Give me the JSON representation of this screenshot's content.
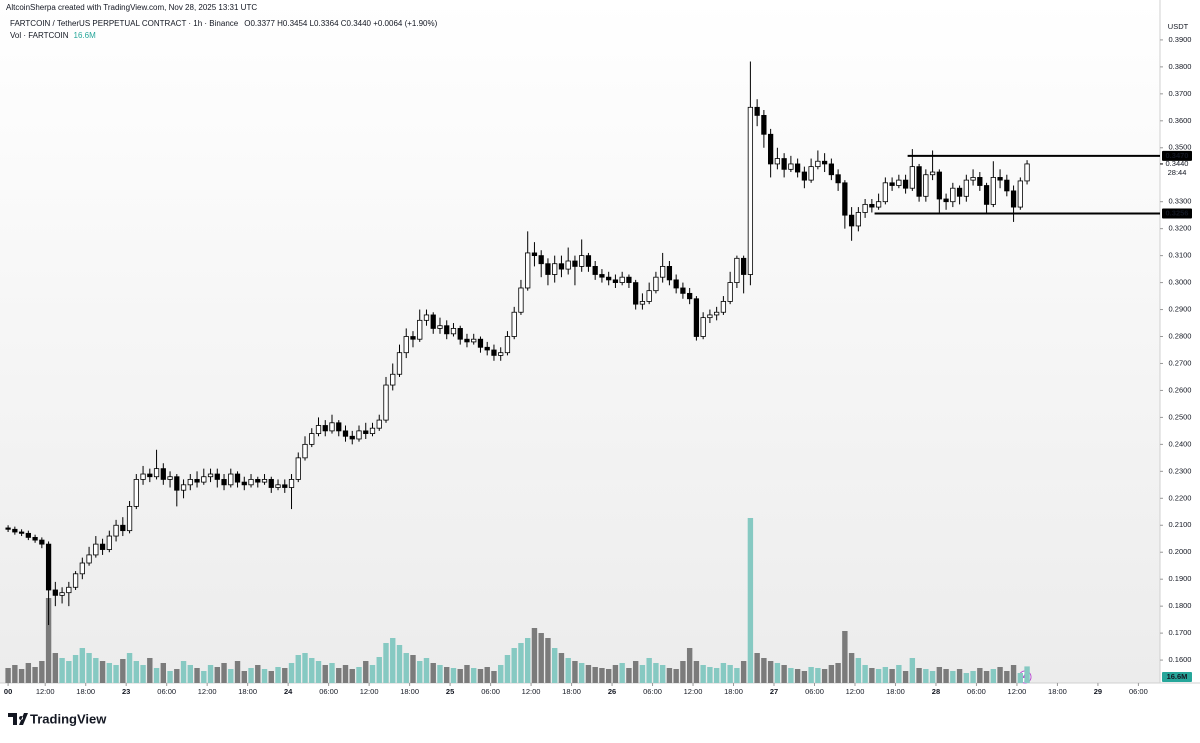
{
  "header": {
    "credit": "AltcoinSherpa created with TradingView.com, Nov 28, 2025 13:31 UTC",
    "symbol": "FARTCOIN / TetherUS PERPETUAL CONTRACT · 1h · Binance",
    "ohlc": "O0.3377 H0.3454 L0.3364 C0.3440 +0.0064 (+1.90%)",
    "vol_label": "Vol · FARTCOIN",
    "vol_value": "16.6M"
  },
  "chart_data": {
    "type": "candlestick",
    "currency": "USDT",
    "open": [
      0.209,
      0.2085,
      0.2075,
      0.207,
      0.2055,
      0.2045,
      0.203,
      0.186,
      0.184,
      0.185,
      0.187,
      0.192,
      0.196,
      0.199,
      0.203,
      0.201,
      0.206,
      0.21,
      0.208,
      0.217,
      0.227,
      0.229,
      0.228,
      0.231,
      0.227,
      0.228,
      0.223,
      0.225,
      0.227,
      0.226,
      0.228,
      0.229,
      0.227,
      0.225,
      0.229,
      0.226,
      0.225,
      0.227,
      0.226,
      0.227,
      0.224,
      0.225,
      0.224,
      0.227,
      0.235,
      0.24,
      0.244,
      0.247,
      0.245,
      0.248,
      0.245,
      0.243,
      0.242,
      0.245,
      0.244,
      0.246,
      0.249,
      0.262,
      0.266,
      0.274,
      0.28,
      0.279,
      0.286,
      0.288,
      0.283,
      0.284,
      0.281,
      0.283,
      0.279,
      0.278,
      0.279,
      0.276,
      0.275,
      0.273,
      0.274,
      0.28,
      0.289,
      0.298,
      0.311,
      0.31,
      0.307,
      0.303,
      0.307,
      0.305,
      0.308,
      0.306,
      0.31,
      0.306,
      0.303,
      0.302,
      0.301,
      0.3,
      0.302,
      0.3,
      0.292,
      0.293,
      0.297,
      0.302,
      0.306,
      0.301,
      0.298,
      0.296,
      0.294,
      0.28,
      0.287,
      0.288,
      0.289,
      0.293,
      0.3,
      0.309,
      0.303,
      0.365,
      0.362,
      0.355,
      0.344,
      0.346,
      0.342,
      0.344,
      0.341,
      0.338,
      0.343,
      0.345,
      0.344,
      0.34,
      0.337,
      0.325,
      0.321,
      0.326,
      0.329,
      0.328,
      0.33,
      0.337,
      0.336,
      0.338,
      0.335,
      0.343,
      0.332,
      0.34,
      0.341,
      0.331,
      0.33,
      0.335,
      0.332,
      0.338,
      0.339,
      0.336,
      0.329,
      0.339,
      0.338,
      0.334,
      0.328,
      0.3377
    ],
    "high": [
      0.21,
      0.2095,
      0.2085,
      0.208,
      0.2065,
      0.2055,
      0.204,
      0.189,
      0.187,
      0.189,
      0.193,
      0.198,
      0.202,
      0.206,
      0.205,
      0.208,
      0.212,
      0.213,
      0.219,
      0.229,
      0.232,
      0.231,
      0.238,
      0.233,
      0.23,
      0.229,
      0.227,
      0.229,
      0.23,
      0.231,
      0.231,
      0.231,
      0.229,
      0.231,
      0.23,
      0.228,
      0.229,
      0.228,
      0.229,
      0.228,
      0.227,
      0.227,
      0.229,
      0.237,
      0.243,
      0.246,
      0.25,
      0.249,
      0.251,
      0.249,
      0.247,
      0.245,
      0.247,
      0.248,
      0.248,
      0.251,
      0.265,
      0.27,
      0.277,
      0.283,
      0.282,
      0.29,
      0.29,
      0.289,
      0.287,
      0.286,
      0.285,
      0.284,
      0.281,
      0.281,
      0.28,
      0.278,
      0.277,
      0.276,
      0.282,
      0.291,
      0.301,
      0.319,
      0.315,
      0.312,
      0.309,
      0.31,
      0.31,
      0.313,
      0.31,
      0.316,
      0.311,
      0.308,
      0.305,
      0.304,
      0.303,
      0.304,
      0.303,
      0.301,
      0.296,
      0.3,
      0.304,
      0.311,
      0.308,
      0.303,
      0.3,
      0.298,
      0.295,
      0.289,
      0.29,
      0.291,
      0.295,
      0.304,
      0.31,
      0.31,
      0.382,
      0.368,
      0.364,
      0.357,
      0.35,
      0.348,
      0.347,
      0.346,
      0.343,
      0.346,
      0.349,
      0.348,
      0.346,
      0.342,
      0.338,
      0.328,
      0.328,
      0.331,
      0.331,
      0.333,
      0.339,
      0.339,
      0.34,
      0.34,
      0.3495,
      0.344,
      0.342,
      0.349,
      0.342,
      0.333,
      0.337,
      0.336,
      0.34,
      0.342,
      0.341,
      0.337,
      0.345,
      0.342,
      0.34,
      0.336,
      0.339,
      0.3454
    ],
    "low": [
      0.2075,
      0.2065,
      0.206,
      0.2045,
      0.2035,
      0.2015,
      0.173,
      0.18,
      0.181,
      0.18,
      0.186,
      0.19,
      0.195,
      0.198,
      0.199,
      0.2,
      0.204,
      0.206,
      0.207,
      0.216,
      0.225,
      0.226,
      0.227,
      0.225,
      0.224,
      0.217,
      0.22,
      0.223,
      0.224,
      0.225,
      0.226,
      0.224,
      0.223,
      0.224,
      0.224,
      0.223,
      0.224,
      0.224,
      0.225,
      0.222,
      0.223,
      0.222,
      0.216,
      0.226,
      0.234,
      0.239,
      0.243,
      0.243,
      0.244,
      0.243,
      0.241,
      0.24,
      0.241,
      0.242,
      0.243,
      0.245,
      0.248,
      0.26,
      0.265,
      0.272,
      0.276,
      0.278,
      0.284,
      0.281,
      0.281,
      0.279,
      0.28,
      0.277,
      0.276,
      0.277,
      0.274,
      0.273,
      0.271,
      0.271,
      0.273,
      0.279,
      0.288,
      0.297,
      0.306,
      0.302,
      0.299,
      0.3,
      0.302,
      0.303,
      0.299,
      0.304,
      0.304,
      0.301,
      0.3,
      0.299,
      0.298,
      0.299,
      0.298,
      0.29,
      0.29,
      0.292,
      0.296,
      0.3,
      0.299,
      0.296,
      0.294,
      0.292,
      0.2785,
      0.279,
      0.285,
      0.286,
      0.288,
      0.292,
      0.298,
      0.296,
      0.299,
      0.358,
      0.35,
      0.339,
      0.342,
      0.339,
      0.341,
      0.339,
      0.335,
      0.337,
      0.342,
      0.341,
      0.338,
      0.334,
      0.32,
      0.3155,
      0.319,
      0.324,
      0.326,
      0.327,
      0.329,
      0.334,
      0.335,
      0.333,
      0.334,
      0.33,
      0.33,
      0.338,
      0.326,
      0.327,
      0.328,
      0.329,
      0.33,
      0.336,
      0.334,
      0.326,
      0.328,
      0.335,
      0.332,
      0.3225,
      0.327,
      0.3364
    ],
    "close": [
      0.2085,
      0.2075,
      0.207,
      0.2055,
      0.2045,
      0.203,
      0.186,
      0.184,
      0.185,
      0.187,
      0.192,
      0.196,
      0.199,
      0.203,
      0.201,
      0.206,
      0.21,
      0.208,
      0.217,
      0.227,
      0.229,
      0.228,
      0.231,
      0.227,
      0.228,
      0.223,
      0.225,
      0.227,
      0.226,
      0.228,
      0.229,
      0.227,
      0.225,
      0.229,
      0.226,
      0.225,
      0.227,
      0.226,
      0.227,
      0.224,
      0.225,
      0.224,
      0.227,
      0.235,
      0.24,
      0.244,
      0.247,
      0.245,
      0.248,
      0.245,
      0.243,
      0.242,
      0.245,
      0.244,
      0.246,
      0.249,
      0.262,
      0.266,
      0.274,
      0.28,
      0.279,
      0.286,
      0.288,
      0.283,
      0.284,
      0.281,
      0.283,
      0.279,
      0.278,
      0.279,
      0.276,
      0.275,
      0.273,
      0.274,
      0.28,
      0.289,
      0.298,
      0.311,
      0.31,
      0.307,
      0.303,
      0.307,
      0.305,
      0.308,
      0.306,
      0.31,
      0.306,
      0.303,
      0.302,
      0.301,
      0.3,
      0.302,
      0.3,
      0.292,
      0.293,
      0.297,
      0.302,
      0.306,
      0.301,
      0.298,
      0.296,
      0.294,
      0.28,
      0.287,
      0.288,
      0.289,
      0.293,
      0.3,
      0.309,
      0.303,
      0.365,
      0.362,
      0.355,
      0.344,
      0.346,
      0.342,
      0.344,
      0.341,
      0.338,
      0.343,
      0.345,
      0.344,
      0.34,
      0.337,
      0.325,
      0.321,
      0.326,
      0.329,
      0.328,
      0.33,
      0.337,
      0.336,
      0.338,
      0.335,
      0.343,
      0.332,
      0.34,
      0.341,
      0.331,
      0.33,
      0.335,
      0.332,
      0.338,
      0.339,
      0.336,
      0.329,
      0.339,
      0.338,
      0.334,
      0.328,
      0.3377,
      0.344
    ],
    "volume": [
      15,
      18,
      14,
      20,
      16,
      22,
      85,
      30,
      25,
      22,
      28,
      35,
      30,
      25,
      22,
      20,
      18,
      24,
      30,
      22,
      18,
      25,
      15,
      20,
      12,
      14,
      22,
      18,
      15,
      12,
      18,
      16,
      20,
      14,
      22,
      12,
      15,
      18,
      14,
      12,
      16,
      15,
      20,
      28,
      30,
      25,
      22,
      18,
      20,
      15,
      18,
      14,
      16,
      22,
      18,
      26,
      40,
      45,
      38,
      30,
      28,
      22,
      25,
      20,
      18,
      16,
      15,
      14,
      18,
      15,
      14,
      16,
      12,
      18,
      28,
      35,
      40,
      45,
      55,
      50,
      45,
      35,
      30,
      25,
      22,
      20,
      18,
      16,
      15,
      14,
      18,
      20,
      15,
      22,
      18,
      25,
      20,
      18,
      15,
      14,
      22,
      35,
      22,
      18,
      16,
      15,
      20,
      18,
      15,
      22,
      165,
      30,
      25,
      22,
      20,
      18,
      15,
      14,
      12,
      16,
      15,
      14,
      18,
      20,
      52,
      30,
      25,
      18,
      15,
      14,
      16,
      14,
      18,
      12,
      25,
      15,
      14,
      12,
      16,
      14,
      12,
      14,
      10,
      12,
      15,
      12,
      14,
      16,
      12,
      18,
      10,
      16.6
    ],
    "up_color": "#ffffff",
    "down_color": "#000000",
    "vol_up_color": "#86c9c2",
    "vol_down_color": "#7b7b7b",
    "xlim": [
      -1.2,
      170.7
    ],
    "ylim": [
      0.1515,
      0.4048
    ],
    "xticks": [
      {
        "value": 0,
        "label": "00"
      },
      {
        "value": 5.5,
        "label": "12:00"
      },
      {
        "value": 11.5,
        "label": "18:00"
      },
      {
        "value": 17.5,
        "label": "23"
      },
      {
        "value": 23.5,
        "label": "06:00"
      },
      {
        "value": 29.5,
        "label": "12:00"
      },
      {
        "value": 35.5,
        "label": "18:00"
      },
      {
        "value": 41.5,
        "label": "24"
      },
      {
        "value": 47.5,
        "label": "06:00"
      },
      {
        "value": 53.5,
        "label": "12:00"
      },
      {
        "value": 59.5,
        "label": "18:00"
      },
      {
        "value": 65.5,
        "label": "25"
      },
      {
        "value": 71.5,
        "label": "06:00"
      },
      {
        "value": 77.5,
        "label": "12:00"
      },
      {
        "value": 83.5,
        "label": "18:00"
      },
      {
        "value": 89.5,
        "label": "26"
      },
      {
        "value": 95.5,
        "label": "06:00"
      },
      {
        "value": 101.5,
        "label": "12:00"
      },
      {
        "value": 107.5,
        "label": "18:00"
      },
      {
        "value": 113.5,
        "label": "27"
      },
      {
        "value": 119.5,
        "label": "06:00"
      },
      {
        "value": 125.5,
        "label": "12:00"
      },
      {
        "value": 131.5,
        "label": "18:00"
      },
      {
        "value": 137.5,
        "label": "28"
      },
      {
        "value": 143.5,
        "label": "06:00"
      },
      {
        "value": 149.5,
        "label": "12:00"
      },
      {
        "value": 155.5,
        "label": "18:00"
      },
      {
        "value": 161.5,
        "label": "29"
      },
      {
        "value": 167.5,
        "label": "06:00"
      }
    ],
    "yticks": [
      {
        "value": 0.39,
        "label": "0.3900"
      },
      {
        "value": 0.38,
        "label": "0.3800"
      },
      {
        "value": 0.37,
        "label": "0.3700"
      },
      {
        "value": 0.36,
        "label": "0.3600"
      },
      {
        "value": 0.35,
        "label": "0.3500"
      },
      {
        "value": 0.33,
        "label": "0.3300"
      },
      {
        "value": 0.32,
        "label": "0.3200"
      },
      {
        "value": 0.31,
        "label": "0.3100"
      },
      {
        "value": 0.3,
        "label": "0.3000"
      },
      {
        "value": 0.29,
        "label": "0.2900"
      },
      {
        "value": 0.28,
        "label": "0.2800"
      },
      {
        "value": 0.27,
        "label": "0.2700"
      },
      {
        "value": 0.26,
        "label": "0.2600"
      },
      {
        "value": 0.25,
        "label": "0.2500"
      },
      {
        "value": 0.24,
        "label": "0.2400"
      },
      {
        "value": 0.23,
        "label": "0.2300"
      },
      {
        "value": 0.22,
        "label": "0.2200"
      },
      {
        "value": 0.21,
        "label": "0.2100"
      },
      {
        "value": 0.2,
        "label": "0.2000"
      },
      {
        "value": 0.19,
        "label": "0.1900"
      },
      {
        "value": 0.18,
        "label": "0.1800"
      },
      {
        "value": 0.17,
        "label": "0.1700"
      },
      {
        "value": 0.16,
        "label": "0.1600"
      }
    ],
    "levels": [
      {
        "value": 0.347,
        "label": "0.3470",
        "from": 133.3
      },
      {
        "value": 0.3256,
        "label": "0.3256",
        "from": 128.4
      }
    ],
    "last_price": 0.344,
    "last_price_label": "0.3440",
    "countdown": "28:44"
  },
  "footer": {
    "brand": "TradingView"
  }
}
